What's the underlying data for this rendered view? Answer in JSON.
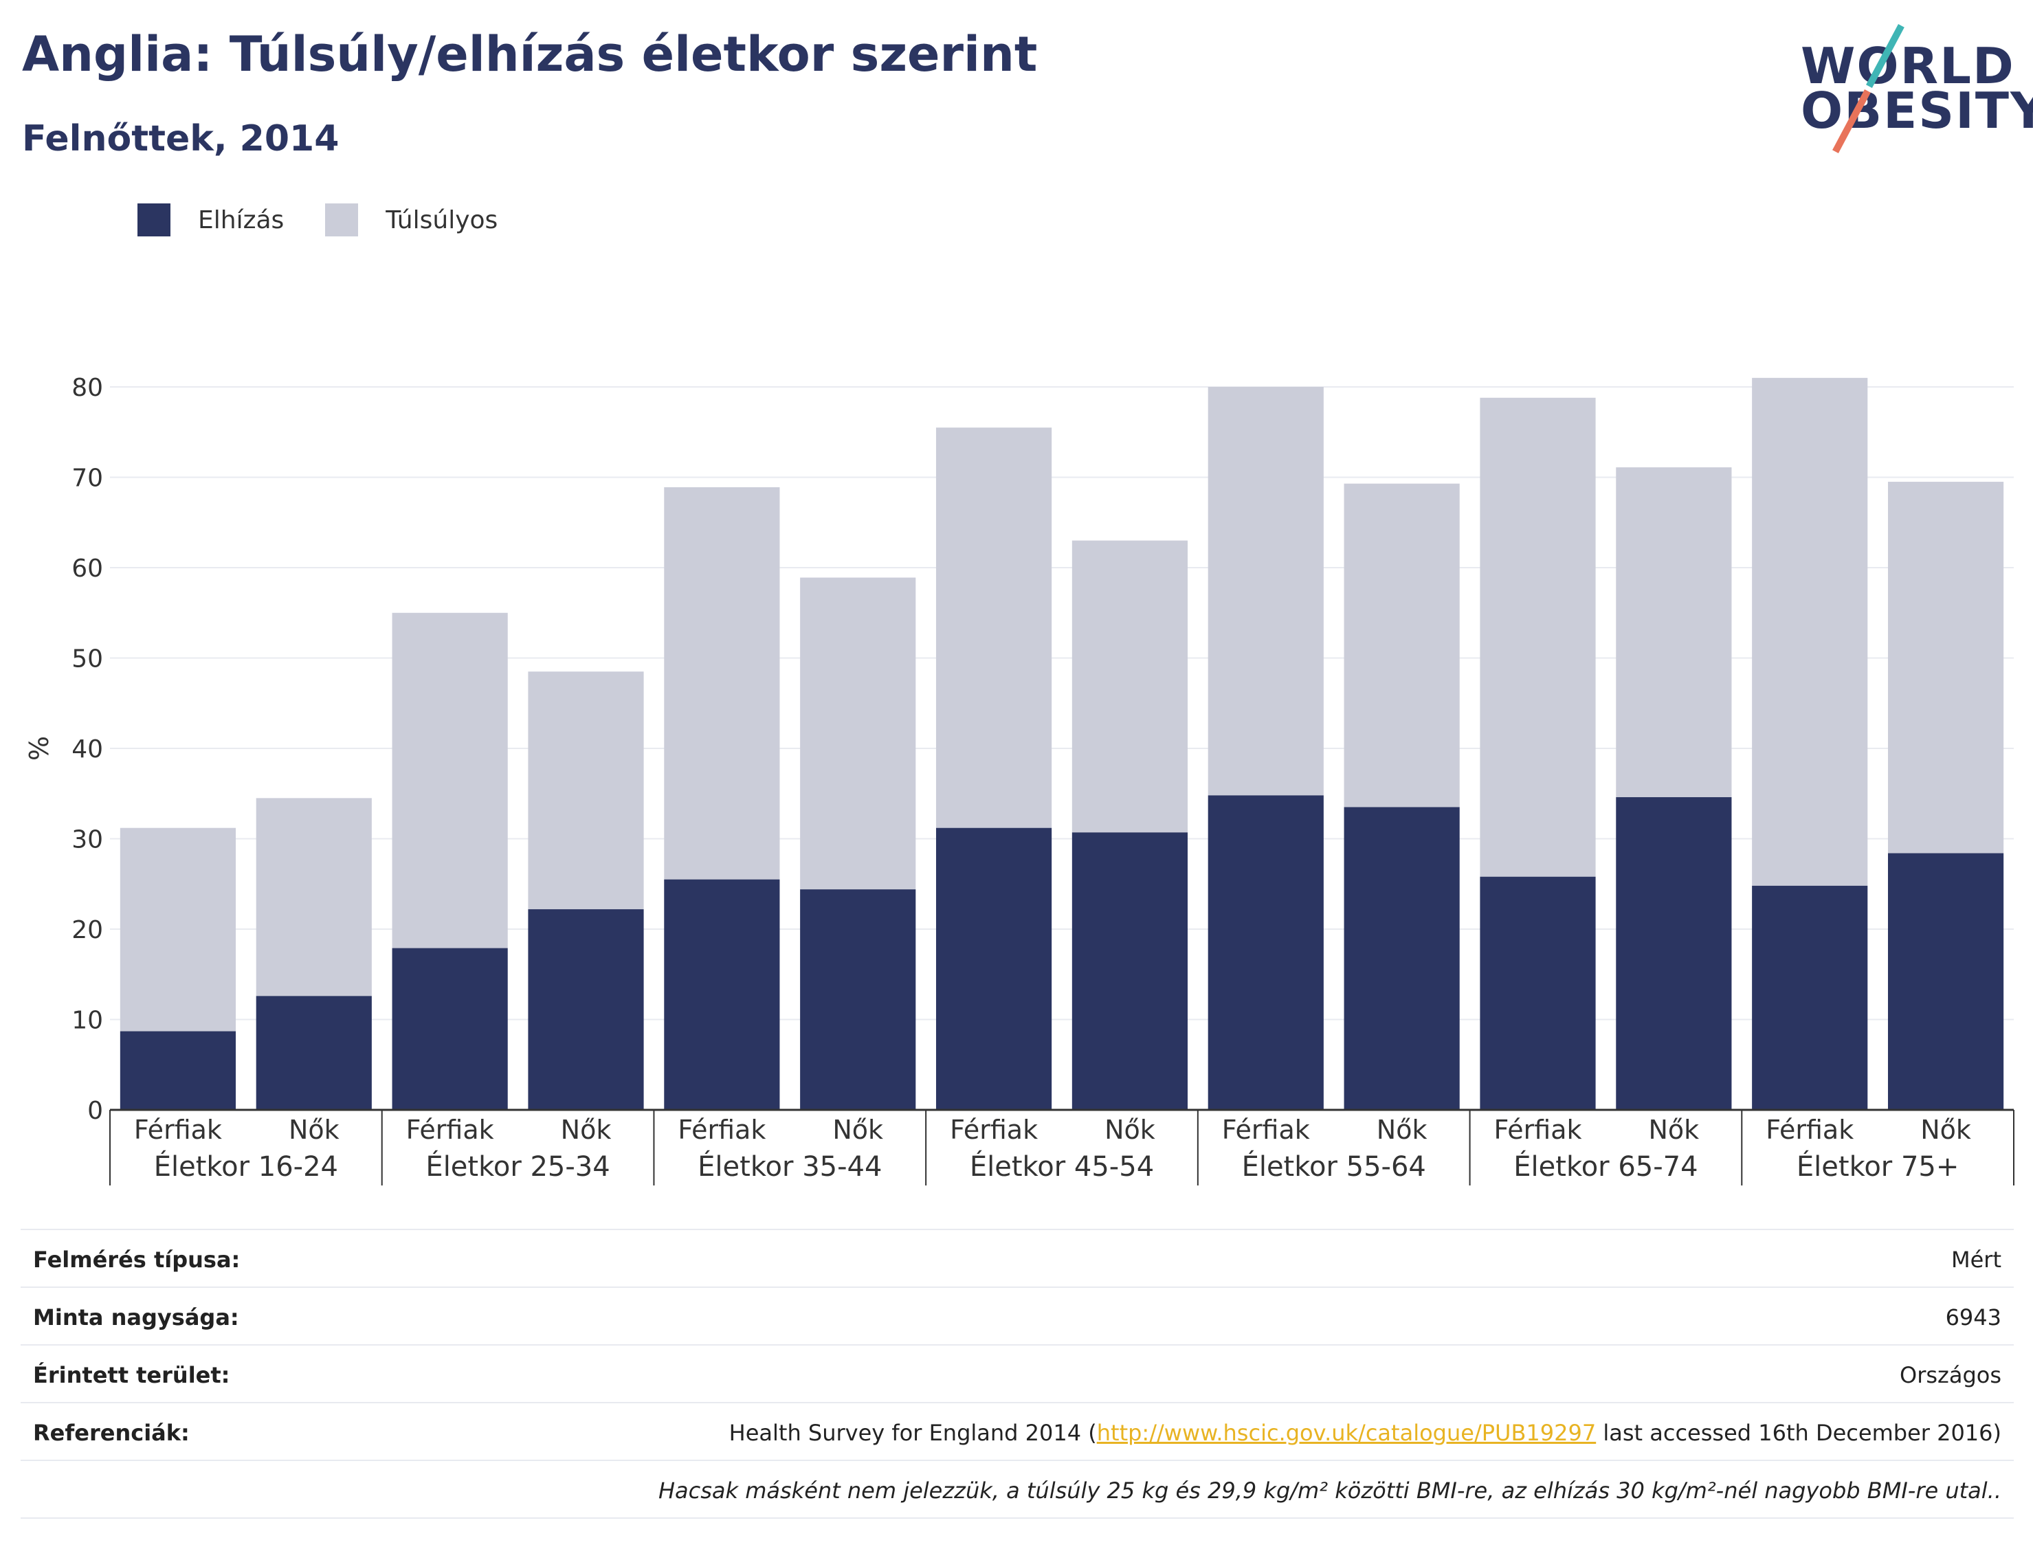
{
  "header": {
    "title": "Anglia: Túlsúly/elhízás életkor szerint",
    "subtitle": "Felnőttek, 2014"
  },
  "logo": {
    "line1": "WORLD",
    "line2": "OBESITY"
  },
  "colors": {
    "obesity": "#2b3561",
    "overweight": "#cbcdd9",
    "grid": "#e9ebf0",
    "axis": "#333333"
  },
  "legend": {
    "obesity_label": "Elhízás",
    "overweight_label": "Túlsúlyos"
  },
  "chart_data": {
    "type": "bar",
    "stacked": true,
    "ylabel": "%",
    "ylim": [
      0,
      80
    ],
    "yticks": [
      0,
      10,
      20,
      30,
      40,
      50,
      60,
      70,
      80
    ],
    "grid": true,
    "legend_position": "top-left",
    "groups": [
      "Életkor 16-24",
      "Életkor 25-34",
      "Életkor 35-44",
      "Életkor 45-54",
      "Életkor 55-64",
      "Életkor 65-74",
      "Életkor 75+"
    ],
    "categories": [
      "Férfiak",
      "Nők",
      "Férfiak",
      "Nők",
      "Férfiak",
      "Nők",
      "Férfiak",
      "Nők",
      "Férfiak",
      "Nők",
      "Férfiak",
      "Nők",
      "Férfiak",
      "Nők"
    ],
    "series": [
      {
        "name": "Elhízás",
        "values": [
          8.7,
          12.6,
          17.9,
          22.2,
          25.5,
          24.4,
          31.2,
          30.7,
          34.8,
          33.5,
          25.8,
          34.6,
          24.8,
          28.4
        ]
      },
      {
        "name": "Túlsúlyos",
        "values": [
          22.5,
          21.9,
          37.1,
          26.3,
          43.4,
          34.5,
          44.3,
          32.3,
          45.2,
          35.8,
          53.0,
          36.5,
          56.2,
          41.1
        ]
      }
    ]
  },
  "info": {
    "survey_type_label": "Felmérés típusa:",
    "survey_type_value": "Mért",
    "sample_size_label": "Minta nagysága:",
    "sample_size_value": "6943",
    "area_label": "Érintett terület:",
    "area_value": "Országos",
    "references_label": "Referenciák:",
    "ref_prefix": "Health Survey for England 2014 (",
    "ref_link": "http://www.hscic.gov.uk/catalogue/PUB19297",
    "ref_suffix": " last accessed 16th December 2016)",
    "note": "Hacsak másként nem jelezzük, a túlsúly 25 kg és 29,9 kg/m² közötti BMI-re, az elhízás 30 kg/m²-nél nagyobb BMI-re utal.."
  }
}
